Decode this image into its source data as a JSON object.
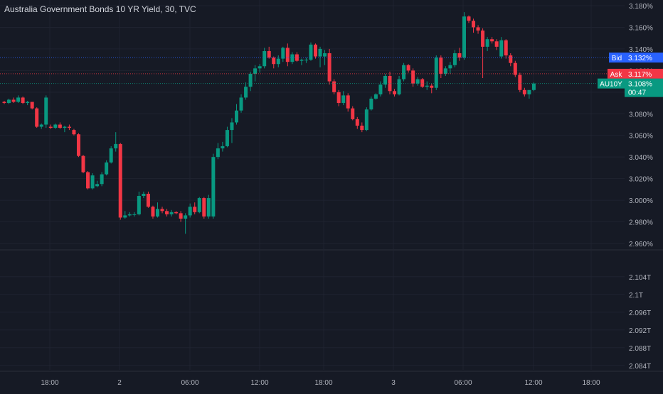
{
  "header": {
    "title": "Australia Government Bonds 10 YR Yield, 30, TVC"
  },
  "colors": {
    "background": "#161a25",
    "grid": "#1f2330",
    "up": "#089981",
    "down": "#f23645",
    "bid": "#2962ff",
    "ask": "#f23645",
    "last": "#089981",
    "text": "#b2b5be"
  },
  "price_axis": {
    "ticks": [
      "3.180%",
      "3.160%",
      "3.140%",
      "3.120%",
      "3.100%",
      "3.080%",
      "3.060%",
      "3.040%",
      "3.020%",
      "3.000%",
      "2.980%",
      "2.960%"
    ]
  },
  "volume_axis": {
    "ticks": [
      "2.104T",
      "2.1T",
      "2.096T",
      "2.092T",
      "2.088T",
      "2.084T"
    ]
  },
  "time_axis": {
    "ticks": [
      "18:00",
      "2",
      "06:00",
      "12:00",
      "18:00",
      "3",
      "06:00",
      "12:00",
      "18:00"
    ]
  },
  "labels": {
    "bid": {
      "name": "Bid",
      "value": "3.132%"
    },
    "ask": {
      "name": "Ask",
      "value": "3.117%"
    },
    "last": {
      "name": "AU10Y",
      "value": "3.108%",
      "countdown": "00:47"
    }
  },
  "chart_data": {
    "type": "candlestick",
    "title": "Australia Government Bonds 10 YR Yield, 30, TVC",
    "interval": "30",
    "ylim": [
      2.96,
      3.18
    ],
    "y_unit": "%",
    "grid": true,
    "bid": 3.132,
    "ask": 3.117,
    "last": 3.108,
    "candles": [
      [
        3.091,
        3.092,
        3.089,
        3.09
      ],
      [
        3.09,
        3.094,
        3.089,
        3.093
      ],
      [
        3.093,
        3.095,
        3.09,
        3.091
      ],
      [
        3.091,
        3.097,
        3.09,
        3.095
      ],
      [
        3.095,
        3.096,
        3.089,
        3.09
      ],
      [
        3.09,
        3.092,
        3.088,
        3.091
      ],
      [
        3.091,
        3.091,
        3.084,
        3.085
      ],
      [
        3.085,
        3.086,
        3.067,
        3.068
      ],
      [
        3.068,
        3.071,
        3.066,
        3.07
      ],
      [
        3.07,
        3.097,
        3.067,
        3.095
      ],
      [
        3.068,
        3.07,
        3.066,
        3.067
      ],
      [
        3.067,
        3.071,
        3.066,
        3.07
      ],
      [
        3.07,
        3.072,
        3.066,
        3.067
      ],
      [
        3.067,
        3.069,
        3.063,
        3.068
      ],
      [
        3.068,
        3.07,
        3.065,
        3.067
      ],
      [
        3.065,
        3.066,
        3.06,
        3.061
      ],
      [
        3.061,
        3.062,
        3.04,
        3.041
      ],
      [
        3.041,
        3.042,
        3.025,
        3.026
      ],
      [
        3.026,
        3.027,
        3.01,
        3.011
      ],
      [
        3.011,
        3.025,
        3.01,
        3.023
      ],
      [
        3.013,
        3.018,
        3.012,
        3.015
      ],
      [
        3.015,
        3.026,
        3.013,
        3.024
      ],
      [
        3.024,
        3.037,
        3.023,
        3.035
      ],
      [
        3.035,
        3.05,
        3.034,
        3.048
      ],
      [
        3.048,
        3.063,
        3.045,
        3.052
      ],
      [
        3.052,
        3.053,
        2.982,
        2.984
      ],
      [
        2.984,
        2.99,
        2.983,
        2.986
      ],
      [
        2.986,
        2.989,
        2.985,
        2.987
      ],
      [
        2.987,
        2.989,
        2.985,
        2.987
      ],
      [
        2.987,
        3.008,
        2.986,
        3.004
      ],
      [
        3.004,
        3.008,
        3.002,
        3.006
      ],
      [
        3.006,
        3.008,
        2.993,
        2.994
      ],
      [
        2.994,
        2.995,
        2.983,
        2.985
      ],
      [
        2.985,
        2.998,
        2.984,
        2.992
      ],
      [
        2.992,
        2.994,
        2.988,
        2.99
      ],
      [
        2.99,
        2.992,
        2.985,
        2.987
      ],
      [
        2.987,
        2.991,
        2.985,
        2.989
      ],
      [
        2.989,
        2.99,
        2.987,
        2.988
      ],
      [
        2.988,
        2.99,
        2.98,
        2.983
      ],
      [
        2.983,
        2.988,
        2.969,
        2.986
      ],
      [
        2.986,
        2.997,
        2.984,
        2.994
      ],
      [
        2.994,
        2.998,
        2.987,
        2.989
      ],
      [
        2.989,
        3.003,
        2.988,
        3.002
      ],
      [
        3.002,
        3.003,
        2.983,
        2.985
      ],
      [
        2.985,
        3.005,
        2.983,
        3.002
      ],
      [
        2.985,
        3.043,
        2.983,
        3.04
      ],
      [
        3.04,
        3.053,
        3.038,
        3.048
      ],
      [
        3.048,
        3.054,
        3.045,
        3.05
      ],
      [
        3.05,
        3.068,
        3.049,
        3.065
      ],
      [
        3.065,
        3.076,
        3.053,
        3.072
      ],
      [
        3.072,
        3.089,
        3.07,
        3.083
      ],
      [
        3.083,
        3.098,
        3.081,
        3.095
      ],
      [
        3.095,
        3.109,
        3.093,
        3.105
      ],
      [
        3.105,
        3.119,
        3.101,
        3.117
      ],
      [
        3.117,
        3.125,
        3.11,
        3.122
      ],
      [
        3.122,
        3.126,
        3.118,
        3.124
      ],
      [
        3.124,
        3.141,
        3.122,
        3.138
      ],
      [
        3.138,
        3.142,
        3.131,
        3.132
      ],
      [
        3.132,
        3.133,
        3.122,
        3.126
      ],
      [
        3.126,
        3.134,
        3.123,
        3.131
      ],
      [
        3.131,
        3.142,
        3.128,
        3.141
      ],
      [
        3.141,
        3.145,
        3.124,
        3.128
      ],
      [
        3.128,
        3.137,
        3.126,
        3.135
      ],
      [
        3.135,
        3.137,
        3.128,
        3.129
      ],
      [
        3.129,
        3.131,
        3.125,
        3.13
      ],
      [
        3.13,
        3.132,
        3.127,
        3.13
      ],
      [
        3.13,
        3.146,
        3.129,
        3.144
      ],
      [
        3.144,
        3.145,
        3.131,
        3.133
      ],
      [
        3.133,
        3.142,
        3.123,
        3.14
      ],
      [
        3.133,
        3.139,
        3.125,
        3.136
      ],
      [
        3.136,
        3.14,
        3.107,
        3.11
      ],
      [
        3.11,
        3.112,
        3.098,
        3.1
      ],
      [
        3.1,
        3.102,
        3.087,
        3.09
      ],
      [
        3.09,
        3.101,
        3.088,
        3.097
      ],
      [
        3.097,
        3.099,
        3.082,
        3.085
      ],
      [
        3.085,
        3.087,
        3.074,
        3.075
      ],
      [
        3.075,
        3.077,
        3.066,
        3.069
      ],
      [
        3.069,
        3.072,
        3.063,
        3.065
      ],
      [
        3.065,
        3.086,
        3.064,
        3.084
      ],
      [
        3.084,
        3.096,
        3.083,
        3.094
      ],
      [
        3.094,
        3.099,
        3.093,
        3.098
      ],
      [
        3.098,
        3.11,
        3.096,
        3.107
      ],
      [
        3.107,
        3.117,
        3.104,
        3.115
      ],
      [
        3.115,
        3.119,
        3.098,
        3.101
      ],
      [
        3.101,
        3.103,
        3.096,
        3.098
      ],
      [
        3.098,
        3.115,
        3.097,
        3.112
      ],
      [
        3.112,
        3.127,
        3.11,
        3.125
      ],
      [
        3.125,
        3.126,
        3.118,
        3.12
      ],
      [
        3.12,
        3.122,
        3.105,
        3.108
      ],
      [
        3.108,
        3.114,
        3.106,
        3.112
      ],
      [
        3.112,
        3.113,
        3.104,
        3.105
      ],
      [
        3.105,
        3.11,
        3.102,
        3.106
      ],
      [
        3.106,
        3.108,
        3.099,
        3.104
      ],
      [
        3.104,
        3.134,
        3.102,
        3.132
      ],
      [
        3.132,
        3.134,
        3.113,
        3.117
      ],
      [
        3.117,
        3.124,
        3.115,
        3.122
      ],
      [
        3.122,
        3.128,
        3.117,
        3.125
      ],
      [
        3.125,
        3.139,
        3.123,
        3.136
      ],
      [
        3.136,
        3.141,
        3.129,
        3.132
      ],
      [
        3.132,
        3.174,
        3.13,
        3.17
      ],
      [
        3.17,
        3.171,
        3.164,
        3.166
      ],
      [
        3.166,
        3.168,
        3.155,
        3.16
      ],
      [
        3.16,
        3.162,
        3.154,
        3.157
      ],
      [
        3.157,
        3.159,
        3.113,
        3.142
      ],
      [
        3.142,
        3.151,
        3.138,
        3.149
      ],
      [
        3.149,
        3.151,
        3.145,
        3.147
      ],
      [
        3.147,
        3.149,
        3.139,
        3.142
      ],
      [
        3.133,
        3.151,
        3.131,
        3.148
      ],
      [
        3.148,
        3.149,
        3.131,
        3.134
      ],
      [
        3.134,
        3.136,
        3.124,
        3.127
      ],
      [
        3.127,
        3.129,
        3.114,
        3.116
      ],
      [
        3.116,
        3.118,
        3.1,
        3.102
      ],
      [
        3.102,
        3.104,
        3.096,
        3.098
      ],
      [
        3.098,
        3.1,
        3.094,
        3.102
      ],
      [
        3.102,
        3.109,
        3.101,
        3.108
      ]
    ],
    "volume_scale": {
      "ylim": [
        2.083,
        2.107
      ]
    }
  }
}
